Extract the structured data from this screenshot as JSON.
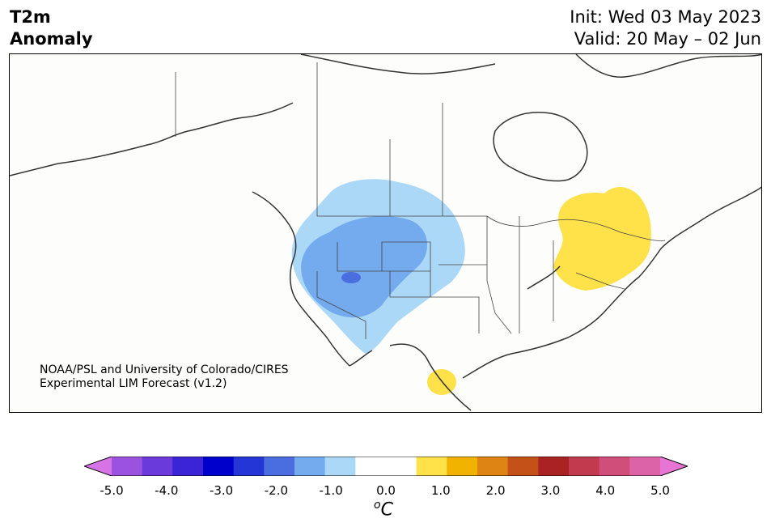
{
  "header": {
    "title_line1": "T2m",
    "title_line2": "Anomaly",
    "init": "Init: Wed 03 May 2023",
    "valid": "Valid: 20 May – 02 Jun"
  },
  "credit": {
    "line1": "NOAA/PSL and University of Colorado/CIRES",
    "line2": "Experimental LIM Forecast (v1.2)"
  },
  "colorbar": {
    "unit_base": "C",
    "unit_sup": "o",
    "ticks": [
      "-5.0",
      "-4.0",
      "-3.0",
      "-2.0",
      "-1.0",
      "0.0",
      "1.0",
      "2.0",
      "3.0",
      "4.0",
      "5.0"
    ],
    "colors": [
      "#d673e6",
      "#9b52de",
      "#6a3adb",
      "#3b23d6",
      "#0000cc",
      "#2436d6",
      "#4a6ee0",
      "#74aaee",
      "#acd8f8",
      "#ffffff",
      "#ffffff",
      "#ffe14a",
      "#f1b300",
      "#de8414",
      "#c35118",
      "#a92323",
      "#c13a4e",
      "#cf4e7a",
      "#dc64a6",
      "#e675d6"
    ]
  },
  "anomalies": {
    "cold_light": "#acd8f8",
    "cold_mid": "#74aaee",
    "cold_core": "#4a6ee0",
    "warm": "#ffe14a"
  }
}
